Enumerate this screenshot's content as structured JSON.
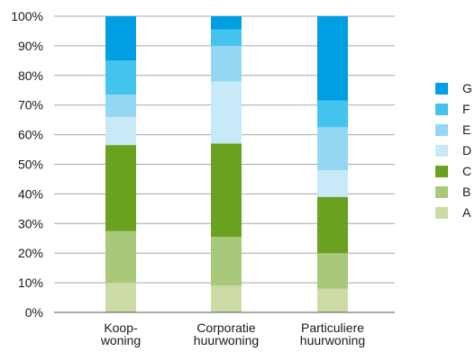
{
  "chart_data": {
    "type": "bar",
    "stacked": true,
    "title": "",
    "xlabel": "",
    "ylabel": "",
    "ylim": [
      0,
      100
    ],
    "yticks": [
      "0%",
      "10%",
      "20%",
      "30%",
      "40%",
      "50%",
      "60%",
      "70%",
      "80%",
      "90%",
      "100%"
    ],
    "grid": true,
    "legend_position": "right",
    "categories": [
      [
        "Koop-",
        "woning"
      ],
      [
        "Corporatie",
        "huurwoning"
      ],
      [
        "Particuliere",
        "huurwoning"
      ]
    ],
    "series": [
      {
        "name": "A",
        "color": "#cddba6",
        "values": [
          10,
          9,
          8
        ]
      },
      {
        "name": "B",
        "color": "#a9c97a",
        "values": [
          17.5,
          16.5,
          12
        ]
      },
      {
        "name": "C",
        "color": "#6aa11e",
        "values": [
          29,
          31.5,
          19
        ]
      },
      {
        "name": "D",
        "color": "#c8e9f8",
        "values": [
          9.5,
          21,
          9
        ]
      },
      {
        "name": "E",
        "color": "#94d7f3",
        "values": [
          7.5,
          12,
          14.5
        ]
      },
      {
        "name": "F",
        "color": "#45c3ef",
        "values": [
          11.5,
          5.5,
          9
        ]
      },
      {
        "name": "G",
        "color": "#009fe3",
        "values": [
          15,
          4.5,
          28.5
        ]
      }
    ]
  }
}
